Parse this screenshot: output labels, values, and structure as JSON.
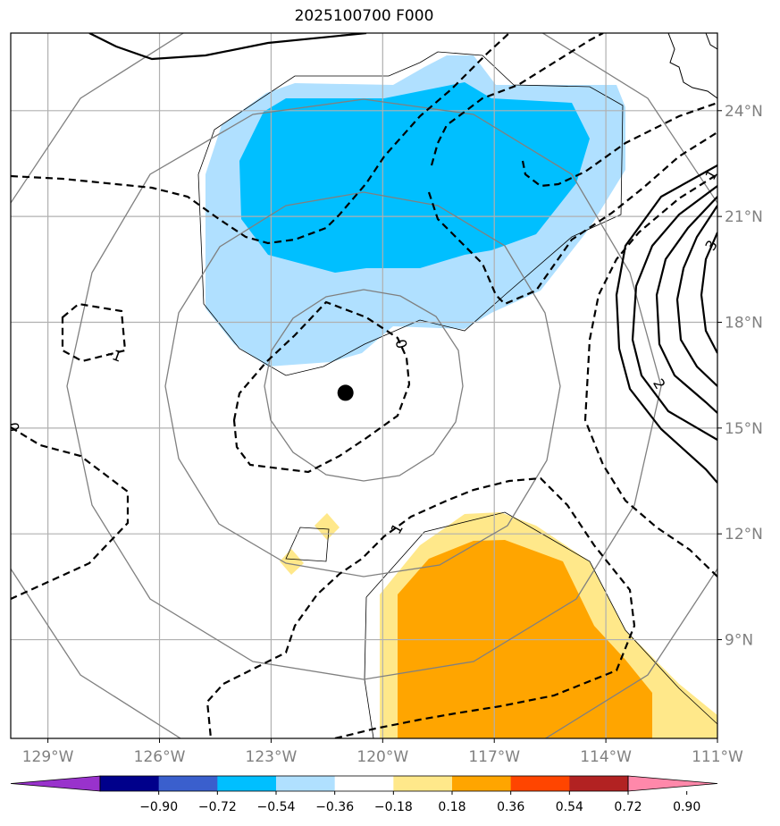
{
  "title": "2025100700 F000",
  "map": {
    "lon_range": [
      -130,
      -111
    ],
    "lat_range": [
      6.2,
      26.2
    ],
    "lon_ticks": [
      {
        "value": -129,
        "label": "129°W"
      },
      {
        "value": -126,
        "label": "126°W"
      },
      {
        "value": -123,
        "label": "123°W"
      },
      {
        "value": -120,
        "label": "120°W"
      },
      {
        "value": -117,
        "label": "117°W"
      },
      {
        "value": -114,
        "label": "114°W"
      },
      {
        "value": -111,
        "label": "111°W"
      }
    ],
    "lat_ticks": [
      {
        "value": 24,
        "label": "24°N"
      },
      {
        "value": 21,
        "label": "21°N"
      },
      {
        "value": 18,
        "label": "18°N"
      },
      {
        "value": 15,
        "label": "15°N"
      },
      {
        "value": 12,
        "label": "12°N"
      },
      {
        "value": 9,
        "label": "9°N"
      }
    ],
    "storm_center": {
      "lon": -121,
      "lat": 16
    },
    "contour_labels": [
      "-1",
      "0",
      "1",
      "2",
      "3",
      "1",
      "0"
    ],
    "colors": {
      "grid": "#b0b0b0",
      "range_rings": "#808080",
      "strong_negative": "#00bfff",
      "weak_negative": "#b0e0ff",
      "weak_positive": "#ffe88a",
      "strong_positive": "#ffa500"
    }
  },
  "colorbar": {
    "ticks": [
      "−0.90",
      "−0.72",
      "−0.54",
      "−0.36",
      "−0.18",
      "0.18",
      "0.36",
      "0.54",
      "0.72",
      "0.90"
    ],
    "colors": [
      "#9932cc",
      "#00008b",
      "#3a5fcd",
      "#00bfff",
      "#b0e0ff",
      "#ffffff",
      "#ffe88a",
      "#ffa500",
      "#ff4500",
      "#b22222",
      "#ff88aa"
    ]
  }
}
